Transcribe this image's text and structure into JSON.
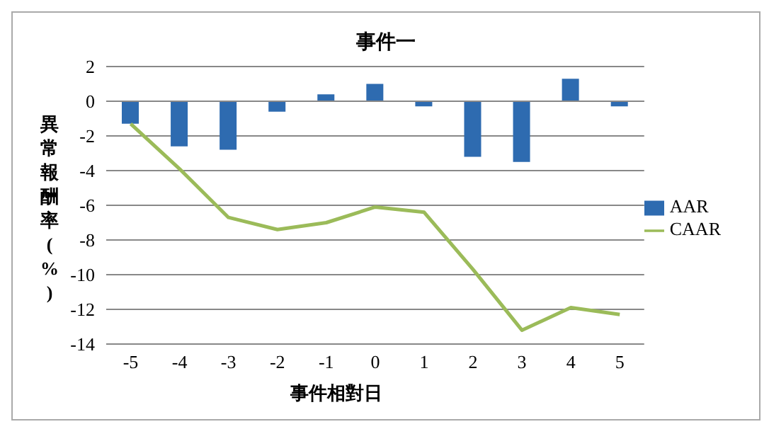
{
  "chart_data": {
    "type": "bar",
    "title": "事件一",
    "xlabel": "事件相對日",
    "ylabel": "異常報酬率(%)",
    "categories": [
      "-5",
      "-4",
      "-3",
      "-2",
      "-1",
      "0",
      "1",
      "2",
      "3",
      "4",
      "5"
    ],
    "series": [
      {
        "name": "AAR",
        "color": "#2e6bb0",
        "values": [
          -1.3,
          -2.6,
          -2.8,
          -0.6,
          0.4,
          1.0,
          -0.3,
          -3.2,
          -3.5,
          1.3,
          -0.3
        ]
      },
      {
        "name": "CAAR",
        "type": "line",
        "color": "#9bbb59",
        "values": [
          -1.3,
          -3.9,
          -6.7,
          -7.4,
          -7.0,
          -6.1,
          -6.4,
          -9.7,
          -13.2,
          -11.9,
          -12.3
        ]
      }
    ],
    "ylim": [
      -14,
      2
    ],
    "yticks": [
      -14,
      -12,
      -10,
      -8,
      -6,
      -4,
      -2,
      0,
      2
    ],
    "grid": "y",
    "legend": "right",
    "marker": "none"
  }
}
